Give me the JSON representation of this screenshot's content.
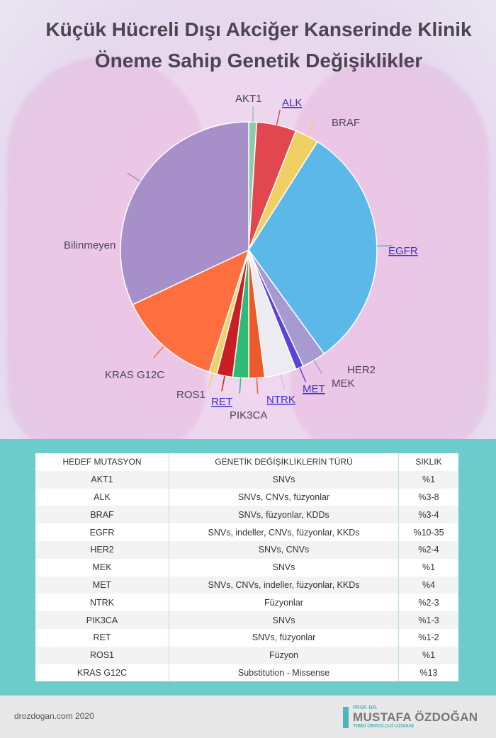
{
  "title": {
    "line1": "Küçük Hücreli Dışı Akciğer Kanserinde Klinik",
    "line2": "Öneme Sahip Genetik Değişiklikler"
  },
  "chart_data": {
    "type": "pie",
    "title": "Küçük Hücreli Dışı Akciğer Kanserinde Klinik Öneme Sahip Genetik Değişiklikler",
    "slices": [
      {
        "label": "AKT1",
        "value": 1,
        "color": "#8ecba8",
        "linked": false
      },
      {
        "label": "ALK",
        "value": 5,
        "color": "#e2474f",
        "linked": true
      },
      {
        "label": "BRAF",
        "value": 3,
        "color": "#f0cf63",
        "linked": false
      },
      {
        "label": "EGFR",
        "value": 31,
        "color": "#5bb8e8",
        "linked": true
      },
      {
        "label": "HER2",
        "value": 3,
        "color": "#a79ad1",
        "linked": false
      },
      {
        "label": "MEK",
        "value": 1,
        "color": "#5a44d8",
        "linked": false
      },
      {
        "label": "MET",
        "value": 4,
        "color": "#ecebf1",
        "linked": true
      },
      {
        "label": "NTRK",
        "value": 2,
        "color": "#ec5a2c",
        "linked": true
      },
      {
        "label": "PIK3CA",
        "value": 2,
        "color": "#2fba78",
        "linked": false
      },
      {
        "label": "RET",
        "value": 2,
        "color": "#c81e24",
        "linked": true
      },
      {
        "label": "ROS1",
        "value": 1,
        "color": "#f2d069",
        "linked": false
      },
      {
        "label": "KRAS G12C",
        "value": 13,
        "color": "#ff6e3e",
        "linked": false
      },
      {
        "label": "Bilinmeyen",
        "value": 32,
        "color": "#a790c9",
        "linked": false
      }
    ]
  },
  "table": {
    "headers": [
      "HEDEF MUTASYON",
      "GENETİK DEĞİŞİKLİKLERİN TÜRÜ",
      "SIKLIK"
    ],
    "rows": [
      [
        "AKT1",
        "SNVs",
        "%1"
      ],
      [
        "ALK",
        "SNVs, CNVs, füzyonlar",
        "%3-8"
      ],
      [
        "BRAF",
        "SNVs, füzyonlar, KDDs",
        "%3-4"
      ],
      [
        "EGFR",
        "SNVs, indeller, CNVs, füzyonlar, KKDs",
        "%10-35"
      ],
      [
        "HER2",
        "SNVs, CNVs",
        "%2-4"
      ],
      [
        "MEK",
        "SNVs",
        "%1"
      ],
      [
        "MET",
        "SNVs, CNVs, indeller, füzyonlar, KKDs",
        "%4"
      ],
      [
        "NTRK",
        "Füzyonlar",
        "%2-3"
      ],
      [
        "PIK3CA",
        "SNVs",
        "%1-3"
      ],
      [
        "RET",
        "SNVs, füzyonlar",
        "%1-2"
      ],
      [
        "ROS1",
        "Füzyon",
        "%1"
      ],
      [
        "KRAS G12C",
        "Substitution - Missense",
        "%13"
      ]
    ]
  },
  "footer": {
    "site": "drozdogan.com 2020",
    "brand_top": "PROF. DR.",
    "brand_name": "MUSTAFA ÖZDOĞAN",
    "brand_sub": "TIBBİ ONKOLOJİ UZMANI"
  }
}
